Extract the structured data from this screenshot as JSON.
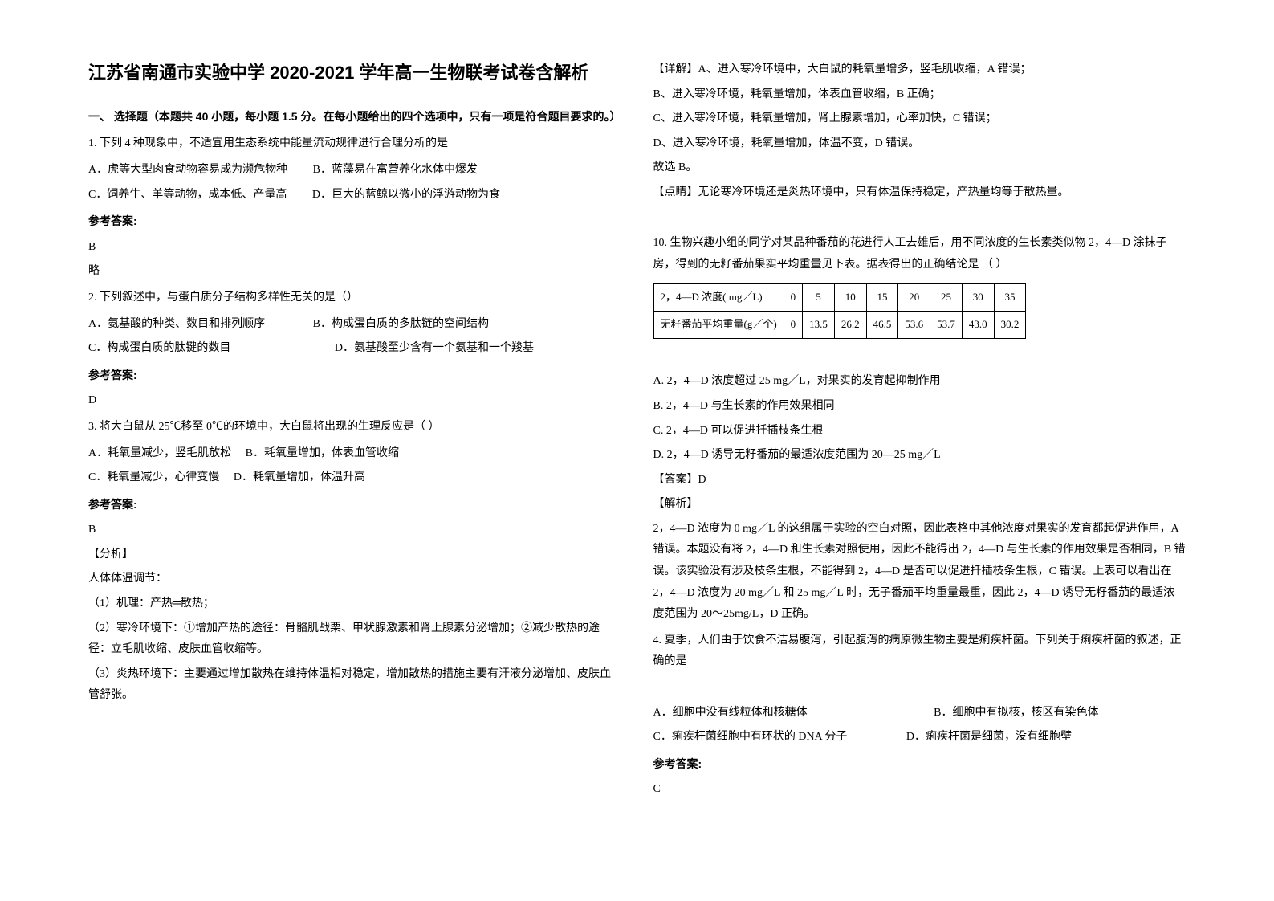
{
  "title": "江苏省南通市实验中学 2020-2021 学年高一生物联考试卷含解析",
  "section1": {
    "header": "一、 选择题（本题共 40 小题，每小题 1.5 分。在每小题给出的四个选项中，只有一项是符合题目要求的。）"
  },
  "q1": {
    "stem": "1. 下列 4 种现象中，不适宜用生态系统中能量流动规律进行合理分析的是",
    "optA": "A．虎等大型肉食动物容易成为濒危物种",
    "optB": "B．蓝藻易在富营养化水体中爆发",
    "optC": "C．饲养牛、羊等动物，成本低、产量高",
    "optD": "D．巨大的蓝鲸以微小的浮游动物为食",
    "answerLabel": "参考答案:",
    "answer": "B",
    "note": "略"
  },
  "q2": {
    "stem": "2. 下列叙述中，与蛋白质分子结构多样性无关的是（）",
    "optA": "A．氨基酸的种类、数目和排列顺序",
    "optB": "B．构成蛋白质的多肽链的空间结构",
    "optC": "C．构成蛋白质的肽键的数目",
    "optD": "D．氨基酸至少含有一个氨基和一个羧基",
    "answerLabel": "参考答案:",
    "answer": "D"
  },
  "q3": {
    "stem": "3. 将大白鼠从 25℃移至 0℃的环境中，大白鼠将出现的生理反应是（             ）",
    "optA": "A．耗氧量减少，竖毛肌放松",
    "optB": "B．耗氧量增加，体表血管收缩",
    "optC": "C．耗氧量减少，心律变慢",
    "optD": "D．耗氧量增加，体温升高",
    "answerLabel": "参考答案:",
    "answer": "B",
    "analysisLabel": "【分析】",
    "analysis1": "人体体温调节：",
    "analysis2": "（1）机理：产热═散热；",
    "analysis3": "（2）寒冷环境下：①增加产热的途径：骨骼肌战栗、甲状腺激素和肾上腺素分泌增加；②减少散热的途径：立毛肌收缩、皮肤血管收缩等。",
    "analysis4": "（3）炎热环境下：主要通过增加散热在维持体温相对稳定，增加散热的措施主要有汗液分泌增加、皮肤血管舒张。"
  },
  "col2": {
    "detail1": "【详解】A、进入寒冷环境中，大白鼠的耗氧量增多，竖毛肌收缩，A 错误；",
    "detail2": "B、进入寒冷环境，耗氧量增加，体表血管收缩，B 正确；",
    "detail3": "C、进入寒冷环境，耗氧量增加，肾上腺素增加，心率加快，C 错误；",
    "detail4": "D、进入寒冷环境，耗氧量增加，体温不变，D 错误。",
    "detail5": "故选 B。",
    "point": "【点睛】无论寒冷环境还是炎热环境中，只有体温保持稳定，产热量均等于散热量。"
  },
  "q10": {
    "stem": "10. 生物兴趣小组的同学对某品种番茄的花进行人工去雄后，用不同浓度的生长素类似物 2，4—D 涂抹子房，得到的无籽番茄果实平均重量见下表。据表得出的正确结论是 （      ）",
    "table": {
      "row1": [
        "2，4—D 浓度( mg／L)",
        "0",
        "5",
        "10",
        "15",
        "20",
        "25",
        "30",
        "35"
      ],
      "row2": [
        "无籽番茄平均重量(g／个)",
        "0",
        "13.5",
        "26.2",
        "46.5",
        "53.6",
        "53.7",
        "43.0",
        "30.2"
      ]
    },
    "optA": "A. 2，4—D 浓度超过 25 mg／L，对果实的发育起抑制作用",
    "optB": "B. 2，4—D 与生长素的作用效果相同",
    "optC": "C. 2，4—D 可以促进扦插枝条生根",
    "optD": "D. 2，4—D 诱导无籽番茄的最适浓度范围为 20—25 mg／L",
    "answerLabel": "【答案】D",
    "analysisLabel": "【解析】",
    "analysis": "2，4—D 浓度为 0 mg／L 的这组属于实验的空白对照，因此表格中其他浓度对果实的发育都起促进作用，A 错误。本题没有将 2，4—D 和生长素对照使用，因此不能得出 2，4—D 与生长素的作用效果是否相同，B 错误。该实验没有涉及枝条生根，不能得到 2，4—D 是否可以促进扦插枝条生根，C 错误。上表可以看出在 2，4—D 浓度为 20 mg／L 和 25 mg／L 时，无子番茄平均重量最重，因此 2，4—D 诱导无籽番茄的最适浓度范围为 20～25mg/L，D 正确。"
  },
  "q4": {
    "stem": "4. 夏季，人们由于饮食不洁易腹泻，引起腹泻的病原微生物主要是痢疾杆菌。下列关于痢疾杆菌的叙述，正确的是",
    "optA": "A．细胞中没有线粒体和核糖体",
    "optB": "B．细胞中有拟核，核区有染色体",
    "optC": "C．痢疾杆菌细胞中有环状的 DNA 分子",
    "optD": "D．痢疾杆菌是细菌，没有细胞壁",
    "answerLabel": "参考答案:",
    "answer": "C"
  }
}
